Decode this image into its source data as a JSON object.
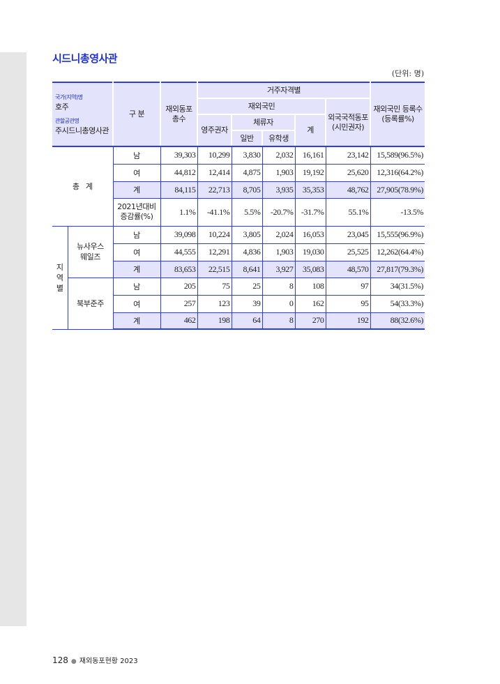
{
  "title": "시드니총영사관",
  "unit": "(단위:  명)",
  "header": {
    "country_label": "국가(지역)명",
    "country": "호주",
    "office_label": "관할공관명",
    "office": "주시드니총영사관",
    "category": "구 분",
    "total": "재외동포 총수",
    "residence": "거주자격별",
    "nationals": "재외국민",
    "permanent": "영주권자",
    "sojourner": "체류자",
    "general": "일반",
    "student": "유학생",
    "subtotal": "계",
    "foreign": "외국국적동포 (시민권자)",
    "registered": "재외국민 등록수 (등록률%)"
  },
  "groups": {
    "total": "총   계",
    "region": "지역별",
    "nsw": "뉴사우스 웨일즈",
    "nt": "북부준주"
  },
  "rows": [
    {
      "label": "남",
      "values": [
        "39,303",
        "10,299",
        "3,830",
        "2,032",
        "16,161",
        "23,142",
        "15,589(96.5%)"
      ]
    },
    {
      "label": "여",
      "values": [
        "44,812",
        "12,414",
        "4,875",
        "1,903",
        "19,192",
        "25,620",
        "12,316(64.2%)"
      ]
    },
    {
      "label": "계",
      "values": [
        "84,115",
        "22,713",
        "8,705",
        "3,935",
        "35,353",
        "48,762",
        "27,905(78.9%)"
      ]
    },
    {
      "label": "2021년대비 증감률(%)",
      "values": [
        "1.1%",
        "-41.1%",
        "5.5%",
        "-20.7%",
        "-31.7%",
        "55.1%",
        "-13.5%"
      ]
    },
    {
      "label": "남",
      "values": [
        "39,098",
        "10,224",
        "3,805",
        "2,024",
        "16,053",
        "23,045",
        "15,555(96.9%)"
      ]
    },
    {
      "label": "여",
      "values": [
        "44,555",
        "12,291",
        "4,836",
        "1,903",
        "19,030",
        "25,525",
        "12,262(64.4%)"
      ]
    },
    {
      "label": "계",
      "values": [
        "83,653",
        "22,515",
        "8,641",
        "3,927",
        "35,083",
        "48,570",
        "27,817(79.3%)"
      ]
    },
    {
      "label": "남",
      "values": [
        "205",
        "75",
        "25",
        "8",
        "108",
        "97",
        "34(31.5%)"
      ]
    },
    {
      "label": "여",
      "values": [
        "257",
        "123",
        "39",
        "0",
        "162",
        "95",
        "54(33.3%)"
      ]
    },
    {
      "label": "계",
      "values": [
        "462",
        "198",
        "64",
        "8",
        "270",
        "192",
        "88(32.6%)"
      ]
    }
  ],
  "footer": {
    "page": "128",
    "publication": "재외동포현황 2023"
  },
  "colors": {
    "accent": "#2b3cf0",
    "header_bg": "#e3e3fb",
    "sidebar": "#e6e6e6"
  }
}
